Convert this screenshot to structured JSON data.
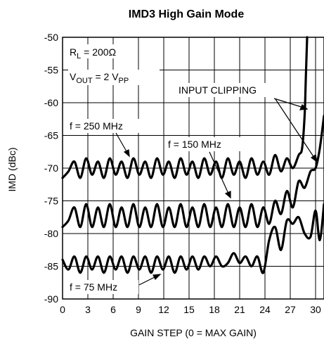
{
  "chart_data": {
    "type": "line",
    "title": "IMD3 High Gain Mode",
    "xlabel": "GAIN STEP (0 = MAX GAIN)",
    "ylabel": "IMD (dBc)",
    "xlim": [
      0,
      31
    ],
    "ylim": [
      -90,
      -50
    ],
    "xticks": [
      0,
      3,
      6,
      9,
      12,
      15,
      18,
      21,
      24,
      27,
      30
    ],
    "yticks": [
      -50,
      -55,
      -60,
      -65,
      -70,
      -75,
      -80,
      -85,
      -90
    ],
    "grid": true,
    "annotations": {
      "rl_main": "R",
      "rl_sub": "L",
      "rl_rest": " = 200Ω",
      "vout_main": "V",
      "vout_sub": "OUT",
      "vout_mid": " = 2 V",
      "vout_sub2": "PP",
      "clipping": "INPUT CLIPPING",
      "f250": "f = 250 MHz",
      "f150": "f = 150 MHz",
      "f75": "f = 75 MHz"
    },
    "series": [
      {
        "name": "f = 250 MHz",
        "x": [
          0,
          0.7,
          1.4,
          2.1,
          2.8,
          3.5,
          4.2,
          4.9,
          5.6,
          6.3,
          7.0,
          7.7,
          8.4,
          9.1,
          9.8,
          10.5,
          11.2,
          11.9,
          12.6,
          13.3,
          14.0,
          14.7,
          15.4,
          16.1,
          16.8,
          17.5,
          18.2,
          18.9,
          19.6,
          20.3,
          21.0,
          21.7,
          22.4,
          23.1,
          23.8,
          24.5,
          25.2,
          25.9,
          26.6,
          27.3,
          28.0,
          28.4,
          28.7,
          28.85,
          29.0
        ],
        "y": [
          -71.5,
          -70.5,
          -69.0,
          -71.5,
          -68.5,
          -71.0,
          -69.0,
          -71.5,
          -68.5,
          -71.0,
          -69.0,
          -71.5,
          -68.5,
          -71.0,
          -69.0,
          -71.5,
          -68.5,
          -71.0,
          -69.0,
          -71.5,
          -68.5,
          -71.0,
          -69.0,
          -71.5,
          -68.5,
          -71.0,
          -69.0,
          -71.5,
          -68.5,
          -71.0,
          -69.0,
          -71.5,
          -68.5,
          -71.0,
          -69.0,
          -71.0,
          -68.0,
          -70.5,
          -68.5,
          -70.0,
          -68.0,
          -67.0,
          -62.0,
          -56.0,
          -50.0
        ]
      },
      {
        "name": "f = 150 MHz",
        "x": [
          0,
          0.7,
          1.4,
          2.1,
          2.8,
          3.5,
          4.2,
          4.9,
          5.6,
          6.3,
          7.0,
          7.7,
          8.4,
          9.1,
          9.8,
          10.5,
          11.2,
          11.9,
          12.6,
          13.3,
          14.0,
          14.7,
          15.4,
          16.1,
          16.8,
          17.5,
          18.2,
          18.9,
          19.6,
          20.3,
          21.0,
          21.7,
          22.4,
          23.1,
          23.8,
          24.5,
          25.2,
          25.9,
          26.6,
          27.3,
          28.0,
          28.7,
          29.4,
          30.0,
          30.5,
          31.0
        ],
        "y": [
          -79.0,
          -78.0,
          -76.0,
          -79.0,
          -75.5,
          -79.0,
          -76.0,
          -79.0,
          -75.5,
          -79.0,
          -76.0,
          -79.0,
          -75.5,
          -79.0,
          -76.0,
          -79.0,
          -75.5,
          -79.0,
          -76.0,
          -79.0,
          -75.5,
          -79.0,
          -76.0,
          -79.0,
          -75.5,
          -79.0,
          -76.0,
          -79.0,
          -75.5,
          -79.0,
          -76.0,
          -79.0,
          -75.5,
          -79.0,
          -76.0,
          -78.5,
          -75.0,
          -77.0,
          -73.5,
          -76.0,
          -72.0,
          -73.0,
          -70.5,
          -70.0,
          -67.0,
          -62.0
        ]
      },
      {
        "name": "f = 75 MHz",
        "x": [
          0,
          0.7,
          1.4,
          2.1,
          2.8,
          3.5,
          4.2,
          4.9,
          5.6,
          6.3,
          7.0,
          7.7,
          8.4,
          9.1,
          9.8,
          10.5,
          11.2,
          11.9,
          12.6,
          13.3,
          14.0,
          14.7,
          15.4,
          16.1,
          16.8,
          17.5,
          18.2,
          18.9,
          19.6,
          20.3,
          21.0,
          21.7,
          22.4,
          23.1,
          23.8,
          24.5,
          25.2,
          25.9,
          26.6,
          27.3,
          28.0,
          28.7,
          29.4,
          30.0,
          30.5,
          31.0
        ],
        "y": [
          -84.0,
          -85.5,
          -83.5,
          -86.0,
          -83.5,
          -85.5,
          -83.5,
          -86.0,
          -83.5,
          -85.5,
          -83.5,
          -86.0,
          -83.5,
          -85.5,
          -83.5,
          -86.0,
          -83.5,
          -85.5,
          -83.5,
          -86.0,
          -83.5,
          -85.5,
          -83.5,
          -85.5,
          -83.5,
          -85.0,
          -83.5,
          -85.0,
          -84.5,
          -83.0,
          -84.5,
          -83.5,
          -85.0,
          -83.5,
          -86.0,
          -81.0,
          -79.0,
          -82.5,
          -78.0,
          -78.5,
          -77.5,
          -80.0,
          -80.5,
          -76.5,
          -81.0,
          -75.5
        ]
      }
    ]
  }
}
